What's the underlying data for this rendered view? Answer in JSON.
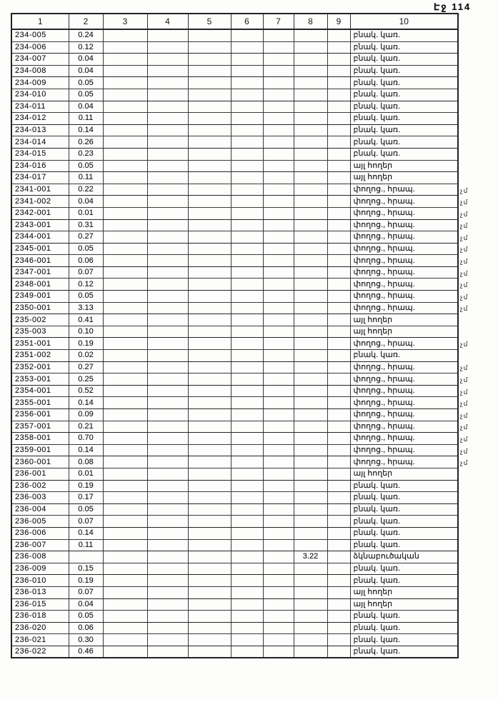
{
  "page": {
    "label": "Էջ 114"
  },
  "colors": {
    "ink": "#1b1b1b",
    "paper": "#fdfdfc",
    "border": "#303030"
  },
  "table": {
    "headers": [
      "1",
      "2",
      "3",
      "4",
      "5",
      "6",
      "7",
      "8",
      "9",
      "10"
    ],
    "rows": [
      {
        "code": "234-005",
        "area": "0.24",
        "col8": "",
        "use": "բնակ. կառ.",
        "note": ""
      },
      {
        "code": "234-006",
        "area": "0.12",
        "col8": "",
        "use": "բնակ. կառ.",
        "note": ""
      },
      {
        "code": "234-007",
        "area": "0.04",
        "col8": "",
        "use": "բնակ. կառ.",
        "note": ""
      },
      {
        "code": "234-008",
        "area": "0.04",
        "col8": "",
        "use": "բնակ. կառ.",
        "note": ""
      },
      {
        "code": "234-009",
        "area": "0.05",
        "col8": "",
        "use": "բնակ. կառ.",
        "note": ""
      },
      {
        "code": "234-010",
        "area": "0.05",
        "col8": "",
        "use": "բնակ. կառ.",
        "note": ""
      },
      {
        "code": "234-011",
        "area": "0.04",
        "col8": "",
        "use": "բնակ. կառ.",
        "note": ""
      },
      {
        "code": "234-012",
        "area": "0.11",
        "col8": "",
        "use": "բնակ. կառ.",
        "note": ""
      },
      {
        "code": "234-013",
        "area": "0.14",
        "col8": "",
        "use": "բնակ. կառ.",
        "note": ""
      },
      {
        "code": "234-014",
        "area": "0.26",
        "col8": "",
        "use": "բնակ. կառ.",
        "note": ""
      },
      {
        "code": "234-015",
        "area": "0.23",
        "col8": "",
        "use": "բնակ. կառ.",
        "note": ""
      },
      {
        "code": "234-016",
        "area": "0.05",
        "col8": "",
        "use": "այլ հողեր",
        "note": ""
      },
      {
        "code": "234-017",
        "area": "0.11",
        "col8": "",
        "use": "այլ հողեր",
        "note": ""
      },
      {
        "code": "2341-001",
        "area": "0.22",
        "col8": "",
        "use": "փողոց., հրապ.",
        "note": "չմ"
      },
      {
        "code": "2341-002",
        "area": "0.04",
        "col8": "",
        "use": "փողոց., հրապ.",
        "note": "չմ"
      },
      {
        "code": "2342-001",
        "area": "0.01",
        "col8": "",
        "use": "փողոց., հրապ.",
        "note": "չմ"
      },
      {
        "code": "2343-001",
        "area": "0.31",
        "col8": "",
        "use": "փողոց., հրապ.",
        "note": "չմ"
      },
      {
        "code": "2344-001",
        "area": "0.27",
        "col8": "",
        "use": "փողոց., հրապ.",
        "note": "չմ"
      },
      {
        "code": "2345-001",
        "area": "0.05",
        "col8": "",
        "use": "փողոց., հրապ.",
        "note": "չմ"
      },
      {
        "code": "2346-001",
        "area": "0.06",
        "col8": "",
        "use": "փողոց., հրապ.",
        "note": "չմ"
      },
      {
        "code": "2347-001",
        "area": "0.07",
        "col8": "",
        "use": "փողոց., հրապ.",
        "note": "չմ"
      },
      {
        "code": "2348-001",
        "area": "0.12",
        "col8": "",
        "use": "փողոց., հրապ.",
        "note": "չմ"
      },
      {
        "code": "2349-001",
        "area": "0.05",
        "col8": "",
        "use": "փողոց., հրապ.",
        "note": "չմ"
      },
      {
        "code": "2350-001",
        "area": "3.13",
        "col8": "",
        "use": "փողոց., հրապ.",
        "note": "չմ"
      },
      {
        "code": "235-002",
        "area": "0.41",
        "col8": "",
        "use": "այլ հողեր",
        "note": ""
      },
      {
        "code": "235-003",
        "area": "0.10",
        "col8": "",
        "use": "այլ հողեր",
        "note": ""
      },
      {
        "code": "2351-001",
        "area": "0.19",
        "col8": "",
        "use": "փողոց., հրապ.",
        "note": "չմ"
      },
      {
        "code": "2351-002",
        "area": "0.02",
        "col8": "",
        "use": "բնակ. կառ.",
        "note": ""
      },
      {
        "code": "2352-001",
        "area": "0.27",
        "col8": "",
        "use": "փողոց., հրապ.",
        "note": "չմ"
      },
      {
        "code": "2353-001",
        "area": "0.25",
        "col8": "",
        "use": "փողոց., հրապ.",
        "note": "չմ"
      },
      {
        "code": "2354-001",
        "area": "0.52",
        "col8": "",
        "use": "փողոց., հրապ.",
        "note": "չմ"
      },
      {
        "code": "2355-001",
        "area": "0.14",
        "col8": "",
        "use": "փողոց., հրապ.",
        "note": "չմ"
      },
      {
        "code": "2356-001",
        "area": "0.09",
        "col8": "",
        "use": "փողոց., հրապ.",
        "note": "չմ"
      },
      {
        "code": "2357-001",
        "area": "0.21",
        "col8": "",
        "use": "փողոց., հրապ.",
        "note": "չմ"
      },
      {
        "code": "2358-001",
        "area": "0.70",
        "col8": "",
        "use": "փողոց., հրապ.",
        "note": "չմ"
      },
      {
        "code": "2359-001",
        "area": "0.14",
        "col8": "",
        "use": "փողոց., հրապ.",
        "note": "չմ"
      },
      {
        "code": "2360-001",
        "area": "0.08",
        "col8": "",
        "use": "փողոց., հրապ.",
        "note": "չմ"
      },
      {
        "code": "236-001",
        "area": "0.01",
        "col8": "",
        "use": "այլ հողեր",
        "note": ""
      },
      {
        "code": "236-002",
        "area": "0.19",
        "col8": "",
        "use": "բնակ. կառ.",
        "note": ""
      },
      {
        "code": "236-003",
        "area": "0.17",
        "col8": "",
        "use": "բնակ. կառ.",
        "note": ""
      },
      {
        "code": "236-004",
        "area": "0.05",
        "col8": "",
        "use": "բնակ. կառ.",
        "note": ""
      },
      {
        "code": "236-005",
        "area": "0.07",
        "col8": "",
        "use": "բնակ. կառ.",
        "note": ""
      },
      {
        "code": "236-006",
        "area": "0.14",
        "col8": "",
        "use": "բնակ. կառ.",
        "note": ""
      },
      {
        "code": "236-007",
        "area": "0.11",
        "col8": "",
        "use": "բնակ. կառ.",
        "note": ""
      },
      {
        "code": "236-008",
        "area": "",
        "col8": "3.22",
        "use": "ձկնաբուծական",
        "note": ""
      },
      {
        "code": "236-009",
        "area": "0.15",
        "col8": "",
        "use": "բնակ. կառ.",
        "note": ""
      },
      {
        "code": "236-010",
        "area": "0.19",
        "col8": "",
        "use": "բնակ. կառ.",
        "note": ""
      },
      {
        "code": "236-013",
        "area": "0.07",
        "col8": "",
        "use": "այլ հողեր",
        "note": ""
      },
      {
        "code": "236-015",
        "area": "0.04",
        "col8": "",
        "use": "այլ հողեր",
        "note": ""
      },
      {
        "code": "236-018",
        "area": "0.05",
        "col8": "",
        "use": "բնակ. կառ.",
        "note": ""
      },
      {
        "code": "236-020",
        "area": "0.06",
        "col8": "",
        "use": "բնակ. կառ.",
        "note": ""
      },
      {
        "code": "236-021",
        "area": "0.30",
        "col8": "",
        "use": "բնակ. կառ.",
        "note": ""
      },
      {
        "code": "236-022",
        "area": "0.46",
        "col8": "",
        "use": "բնակ. կառ.",
        "note": ""
      }
    ]
  }
}
